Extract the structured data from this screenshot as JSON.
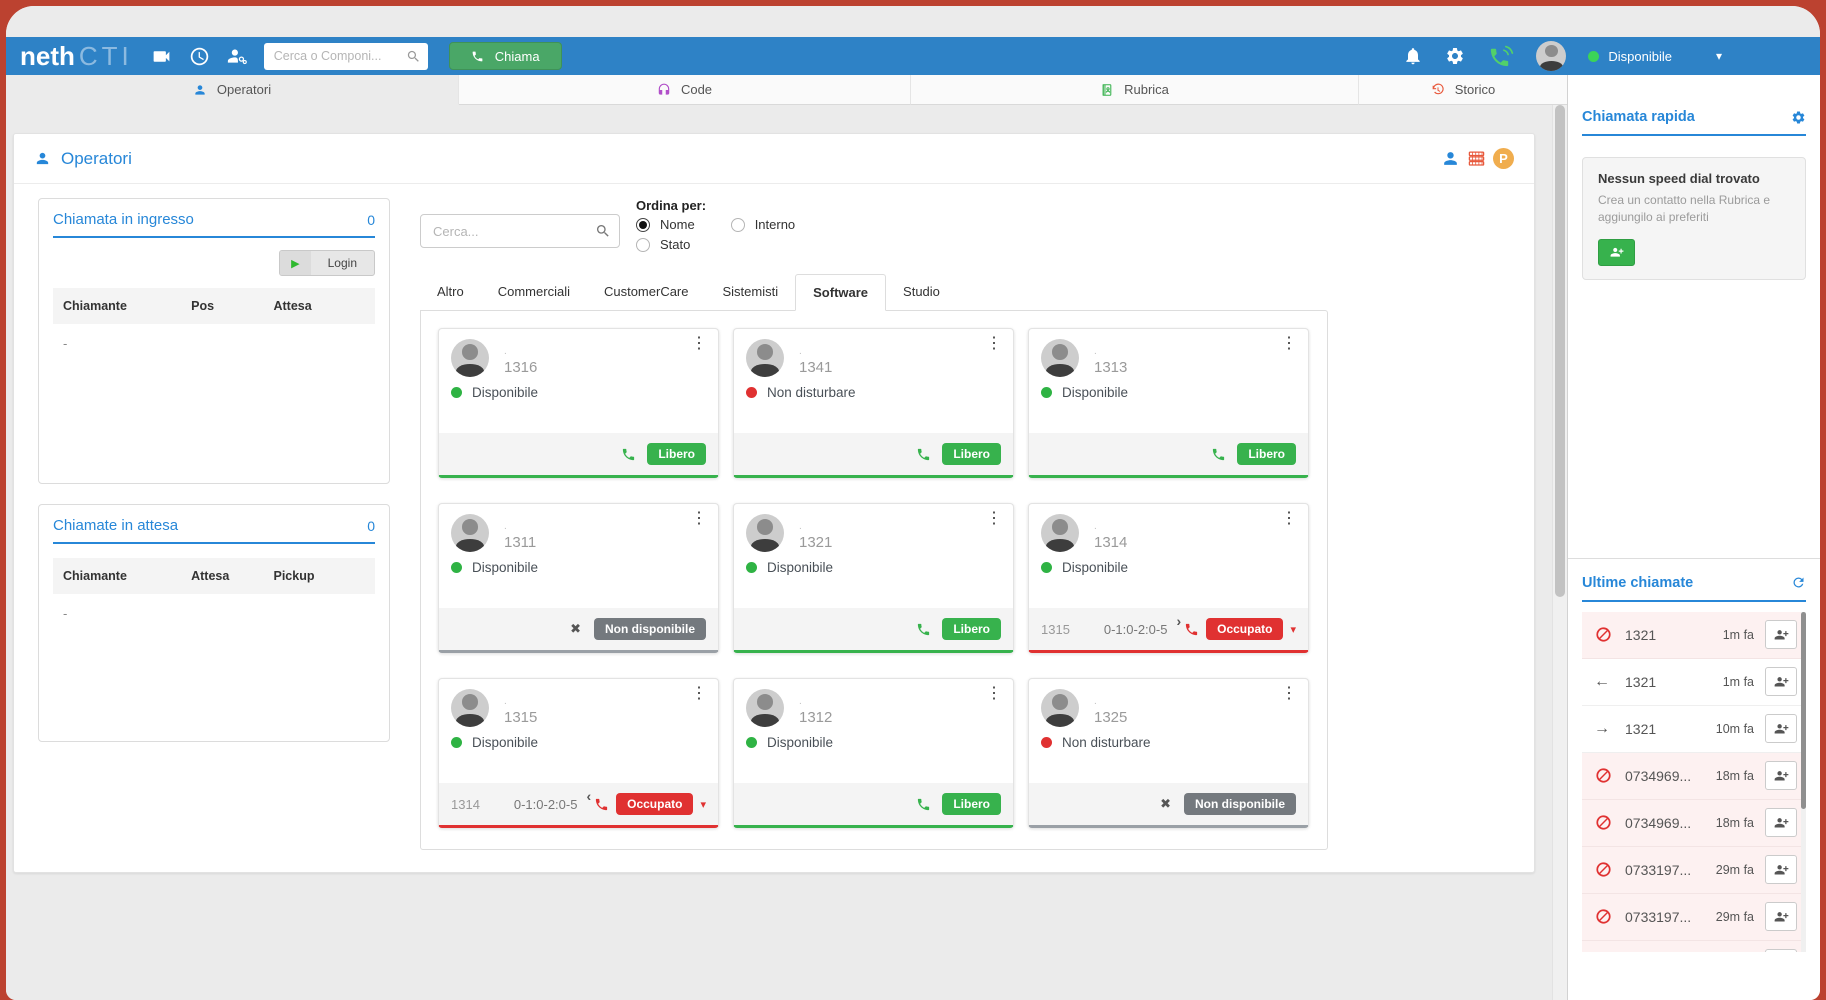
{
  "colors": {
    "frame_red": "#bc4230",
    "topbar_blue": "#2e82c6",
    "accent_blue": "#2787d8",
    "green": "#37b24d",
    "red": "#e03131",
    "orange": "#e8593c",
    "parking_yellow": "#f0ad4e"
  },
  "topbar": {
    "logo_bold": "neth",
    "logo_thin": "CTI",
    "icons": [
      "video-camera-icon",
      "clock-icon",
      "operators-panel-icon"
    ],
    "search_placeholder": "Cerca o Componi...",
    "call_button_label": "Chiama",
    "right_icons": [
      "bell-icon",
      "gear-icon",
      "phone-connected-icon",
      "avatar",
      "caret-down-icon"
    ],
    "user_status": "Disponibile"
  },
  "nav_tabs": [
    {
      "id": "operatori",
      "label": "Operatori",
      "icon": "person",
      "color": "#2787d8",
      "active": true
    },
    {
      "id": "code",
      "label": "Code",
      "icon": "headset",
      "color": "#b14fc9",
      "active": false
    },
    {
      "id": "rubrica",
      "label": "Rubrica",
      "icon": "book",
      "color": "#37b24d",
      "active": false
    },
    {
      "id": "storico",
      "label": "Storico",
      "icon": "history",
      "color": "#e8593c",
      "active": false
    }
  ],
  "main": {
    "title": "Operatori",
    "tools": {
      "parking_label": "P"
    },
    "incoming": {
      "title": "Chiamata in ingresso",
      "count": "0",
      "login_label": "Login",
      "columns": [
        "Chiamante",
        "Pos",
        "Attesa"
      ],
      "empty": "-"
    },
    "waiting": {
      "title": "Chiamate in attesa",
      "count": "0",
      "columns": [
        "Chiamante",
        "Attesa",
        "Pickup"
      ],
      "empty": "-"
    },
    "search_placeholder": "Cerca...",
    "sort": {
      "label": "Ordina per:",
      "options": [
        {
          "label": "Nome",
          "selected": true
        },
        {
          "label": "Interno",
          "selected": false
        },
        {
          "label": "Stato",
          "selected": false
        }
      ]
    },
    "group_tabs": [
      {
        "label": "Altro",
        "active": false
      },
      {
        "label": "Commerciali",
        "active": false
      },
      {
        "label": "CustomerCare",
        "active": false
      },
      {
        "label": "Sistemisti",
        "active": false
      },
      {
        "label": "Software",
        "active": true
      },
      {
        "label": "Studio",
        "active": false
      }
    ],
    "operators": [
      {
        "ext": "1316",
        "name": ".",
        "presence": {
          "label": "Disponibile",
          "color": "green"
        },
        "footer": {
          "type": "free",
          "badge": "Libero"
        }
      },
      {
        "ext": "1341",
        "name": ".",
        "presence": {
          "label": "Non disturbare",
          "color": "red"
        },
        "footer": {
          "type": "free",
          "badge": "Libero"
        }
      },
      {
        "ext": "1313",
        "name": ".",
        "presence": {
          "label": "Disponibile",
          "color": "green"
        },
        "footer": {
          "type": "free",
          "badge": "Libero"
        }
      },
      {
        "ext": "1311",
        "name": ".",
        "presence": {
          "label": "Disponibile",
          "color": "green"
        },
        "footer": {
          "type": "offline",
          "badge": "Non disponibile"
        }
      },
      {
        "ext": "1321",
        "name": ".",
        "presence": {
          "label": "Disponibile",
          "color": "green"
        },
        "footer": {
          "type": "free",
          "badge": "Libero"
        }
      },
      {
        "ext": "1314",
        "name": ".",
        "presence": {
          "label": "Disponibile",
          "color": "green"
        },
        "footer": {
          "type": "busy",
          "badge": "Occupato",
          "peer": "1315",
          "duration": "0-1:0-2:0-5",
          "direction": "out"
        }
      },
      {
        "ext": "1315",
        "name": ".",
        "presence": {
          "label": "Disponibile",
          "color": "green"
        },
        "footer": {
          "type": "busy",
          "badge": "Occupato",
          "peer": "1314",
          "duration": "0-1:0-2:0-5",
          "direction": "in"
        }
      },
      {
        "ext": "1312",
        "name": ".",
        "presence": {
          "label": "Disponibile",
          "color": "green"
        },
        "footer": {
          "type": "free",
          "badge": "Libero"
        }
      },
      {
        "ext": "1325",
        "name": ".",
        "presence": {
          "label": "Non disturbare",
          "color": "red"
        },
        "footer": {
          "type": "offline",
          "badge": "Non disponibile"
        }
      }
    ]
  },
  "sidebar": {
    "quick_call": {
      "title": "Chiamata rapida",
      "icon": "gear-icon",
      "empty_title": "Nessun speed dial trovato",
      "empty_text": "Crea un contatto nella Rubrica e aggiungilo ai preferiti",
      "add_icon": "person-add-icon"
    },
    "recent": {
      "title": "Ultime chiamate",
      "icon": "refresh-icon",
      "calls": [
        {
          "icon": "ban",
          "number": "1321",
          "time": "1m fa",
          "missed": true
        },
        {
          "icon": "arrow-left",
          "number": "1321",
          "time": "1m fa",
          "missed": false
        },
        {
          "icon": "arrow-right",
          "number": "1321",
          "time": "10m fa",
          "missed": false
        },
        {
          "icon": "ban",
          "number": "0734969...",
          "time": "18m fa",
          "missed": true
        },
        {
          "icon": "ban",
          "number": "0734969...",
          "time": "18m fa",
          "missed": true
        },
        {
          "icon": "ban",
          "number": "0733197...",
          "time": "29m fa",
          "missed": true
        },
        {
          "icon": "ban",
          "number": "0733197...",
          "time": "29m fa",
          "missed": true
        },
        {
          "icon": "ban",
          "number": "",
          "time": "",
          "missed": true,
          "partial": true
        }
      ]
    }
  }
}
